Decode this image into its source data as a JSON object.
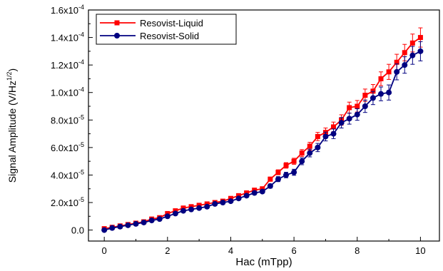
{
  "chart_data": {
    "type": "line",
    "xlabel": "Hac (mTpp)",
    "ylabel": "Signal Amplitude (V/Hz^1/2)",
    "ylabel_parts": {
      "main": "Signal Amplitude (V/Hz",
      "sup": "1/2",
      "close": ")"
    },
    "xlim": [
      -0.5,
      10.6
    ],
    "ylim": [
      -0.08,
      1.6
    ],
    "y_unit_exponent": "-4",
    "xticks": [
      0,
      2,
      4,
      6,
      8,
      10
    ],
    "xtick_labels": [
      "0",
      "2",
      "4",
      "6",
      "8",
      "10"
    ],
    "yticks": [
      0,
      0.2,
      0.4,
      0.6,
      0.8,
      1.0,
      1.2,
      1.4,
      1.6
    ],
    "ytick_labels": [
      {
        "mant": "0.0",
        "exp": ""
      },
      {
        "mant": "2.0x10",
        "exp": "-5"
      },
      {
        "mant": "4.0x10",
        "exp": "-5"
      },
      {
        "mant": "6.0x10",
        "exp": "-5"
      },
      {
        "mant": "8.0x10",
        "exp": "-5"
      },
      {
        "mant": "1.0x10",
        "exp": "-4"
      },
      {
        "mant": "1.2x10",
        "exp": "-4"
      },
      {
        "mant": "1.4x10",
        "exp": "-4"
      },
      {
        "mant": "1.6x10",
        "exp": "-4"
      }
    ],
    "legend_position": "top-left",
    "grid": false,
    "series": [
      {
        "name": "Resovist-Liquid",
        "color": "#ff0000",
        "marker": "square",
        "x": [
          0,
          0.25,
          0.5,
          0.75,
          1.0,
          1.25,
          1.5,
          1.75,
          2.0,
          2.25,
          2.5,
          2.75,
          3.0,
          3.25,
          3.5,
          3.75,
          4.0,
          4.25,
          4.5,
          4.75,
          5.0,
          5.25,
          5.5,
          5.75,
          6.0,
          6.25,
          6.5,
          6.75,
          7.0,
          7.25,
          7.5,
          7.75,
          8.0,
          8.25,
          8.5,
          8.75,
          9.0,
          9.25,
          9.5,
          9.75,
          10.0
        ],
        "y": [
          0.01,
          0.02,
          0.03,
          0.04,
          0.05,
          0.06,
          0.08,
          0.09,
          0.12,
          0.14,
          0.16,
          0.17,
          0.18,
          0.19,
          0.2,
          0.21,
          0.23,
          0.25,
          0.27,
          0.29,
          0.3,
          0.37,
          0.42,
          0.47,
          0.5,
          0.56,
          0.61,
          0.68,
          0.71,
          0.75,
          0.8,
          0.89,
          0.9,
          0.98,
          1.01,
          1.1,
          1.15,
          1.22,
          1.29,
          1.36,
          1.4
        ],
        "err": [
          0.005,
          0.005,
          0.005,
          0.005,
          0.005,
          0.005,
          0.006,
          0.006,
          0.007,
          0.007,
          0.008,
          0.008,
          0.008,
          0.009,
          0.009,
          0.01,
          0.01,
          0.01,
          0.012,
          0.012,
          0.012,
          0.015,
          0.018,
          0.02,
          0.022,
          0.025,
          0.028,
          0.03,
          0.032,
          0.035,
          0.038,
          0.04,
          0.042,
          0.045,
          0.048,
          0.05,
          0.055,
          0.058,
          0.06,
          0.065,
          0.07
        ]
      },
      {
        "name": "Resovist-Solid",
        "color": "#000080",
        "marker": "circle",
        "x": [
          0,
          0.25,
          0.5,
          0.75,
          1.0,
          1.25,
          1.5,
          1.75,
          2.0,
          2.25,
          2.5,
          2.75,
          3.0,
          3.25,
          3.5,
          3.75,
          4.0,
          4.25,
          4.5,
          4.75,
          5.0,
          5.25,
          5.5,
          5.75,
          6.0,
          6.25,
          6.5,
          6.75,
          7.0,
          7.25,
          7.5,
          7.75,
          8.0,
          8.25,
          8.5,
          8.75,
          9.0,
          9.25,
          9.5,
          9.75,
          10.0
        ],
        "y": [
          0.0,
          0.015,
          0.025,
          0.035,
          0.045,
          0.055,
          0.07,
          0.08,
          0.1,
          0.12,
          0.14,
          0.15,
          0.16,
          0.17,
          0.19,
          0.2,
          0.21,
          0.23,
          0.25,
          0.27,
          0.28,
          0.32,
          0.37,
          0.4,
          0.42,
          0.5,
          0.56,
          0.6,
          0.68,
          0.7,
          0.78,
          0.81,
          0.84,
          0.9,
          0.96,
          0.99,
          1.0,
          1.15,
          1.2,
          1.27,
          1.3
        ],
        "err": [
          0.005,
          0.005,
          0.005,
          0.005,
          0.005,
          0.005,
          0.006,
          0.006,
          0.007,
          0.007,
          0.008,
          0.008,
          0.008,
          0.009,
          0.009,
          0.01,
          0.01,
          0.01,
          0.012,
          0.012,
          0.012,
          0.015,
          0.018,
          0.02,
          0.022,
          0.025,
          0.028,
          0.03,
          0.032,
          0.035,
          0.038,
          0.04,
          0.042,
          0.045,
          0.048,
          0.05,
          0.055,
          0.058,
          0.06,
          0.065,
          0.07
        ]
      }
    ]
  }
}
